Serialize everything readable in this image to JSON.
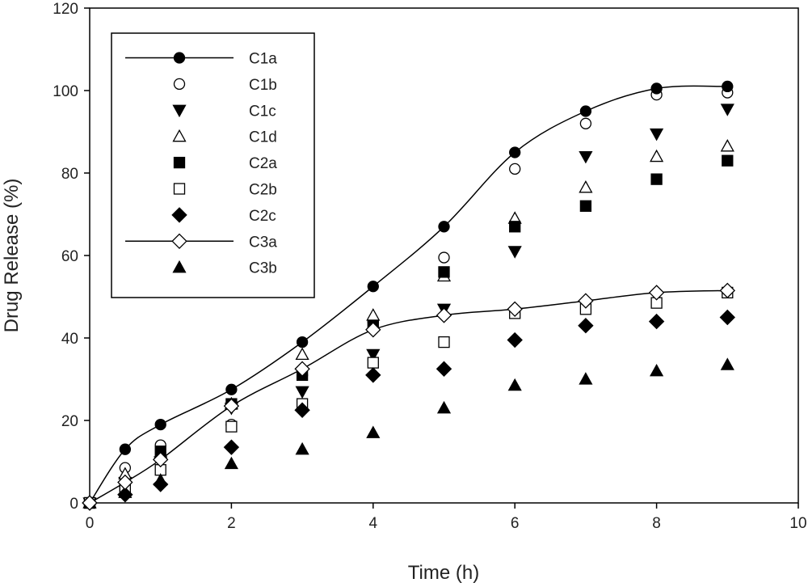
{
  "chart_data": {
    "type": "scatter",
    "title": "",
    "xlabel": "Time (h)",
    "ylabel": "Drug Release (%)",
    "xlim": [
      0,
      10
    ],
    "ylim": [
      0,
      120
    ],
    "xticks": [
      "0",
      "2",
      "4",
      "6",
      "8",
      "10"
    ],
    "yticks": [
      "0",
      "20",
      "40",
      "60",
      "80",
      "100",
      "120"
    ],
    "grid": false,
    "legend_position": "top-left",
    "x": [
      0,
      0.5,
      1,
      2,
      3,
      4,
      5,
      6,
      7,
      8,
      9
    ],
    "series": [
      {
        "name": "C1a",
        "marker": "filled-circle",
        "line": true,
        "values": [
          0,
          13,
          19,
          27.5,
          39,
          52.5,
          67,
          85,
          95,
          100.5,
          101
        ]
      },
      {
        "name": "C1b",
        "marker": "open-circle",
        "line": false,
        "values": [
          0,
          8.5,
          14,
          19,
          31,
          44,
          59.5,
          81,
          92,
          99,
          99.5
        ]
      },
      {
        "name": "C1c",
        "marker": "filled-triangle-down",
        "line": false,
        "values": [
          0,
          5,
          10,
          23,
          27,
          36,
          47,
          61,
          84,
          89.5,
          95.5
        ]
      },
      {
        "name": "C1d",
        "marker": "open-triangle-up",
        "line": false,
        "values": [
          0,
          7,
          12,
          24,
          36,
          45.5,
          55,
          69,
          76.5,
          84,
          86.5
        ]
      },
      {
        "name": "C2a",
        "marker": "filled-square",
        "line": false,
        "values": [
          0,
          4,
          12.5,
          24,
          31,
          43,
          56,
          67,
          72,
          78.5,
          83
        ]
      },
      {
        "name": "C2b",
        "marker": "open-square",
        "line": false,
        "values": [
          0,
          3.5,
          8,
          18.5,
          24,
          34,
          39,
          46,
          47,
          48.5,
          51
        ]
      },
      {
        "name": "C2c",
        "marker": "filled-diamond",
        "line": false,
        "values": [
          0,
          2,
          4.5,
          13.5,
          22.5,
          31,
          32.5,
          39.5,
          43,
          44,
          45
        ]
      },
      {
        "name": "C3a",
        "marker": "open-diamond",
        "line": true,
        "values": [
          0,
          5,
          10.5,
          23.5,
          32.5,
          42,
          45.5,
          47,
          49,
          51,
          51.5
        ]
      },
      {
        "name": "C3b",
        "marker": "filled-triangle-up",
        "line": false,
        "values": [
          0,
          2.5,
          5.5,
          9.5,
          13,
          17,
          23,
          28.5,
          30,
          32,
          33.5
        ]
      }
    ]
  },
  "colors": {
    "ink": "#000000",
    "background": "#ffffff"
  }
}
